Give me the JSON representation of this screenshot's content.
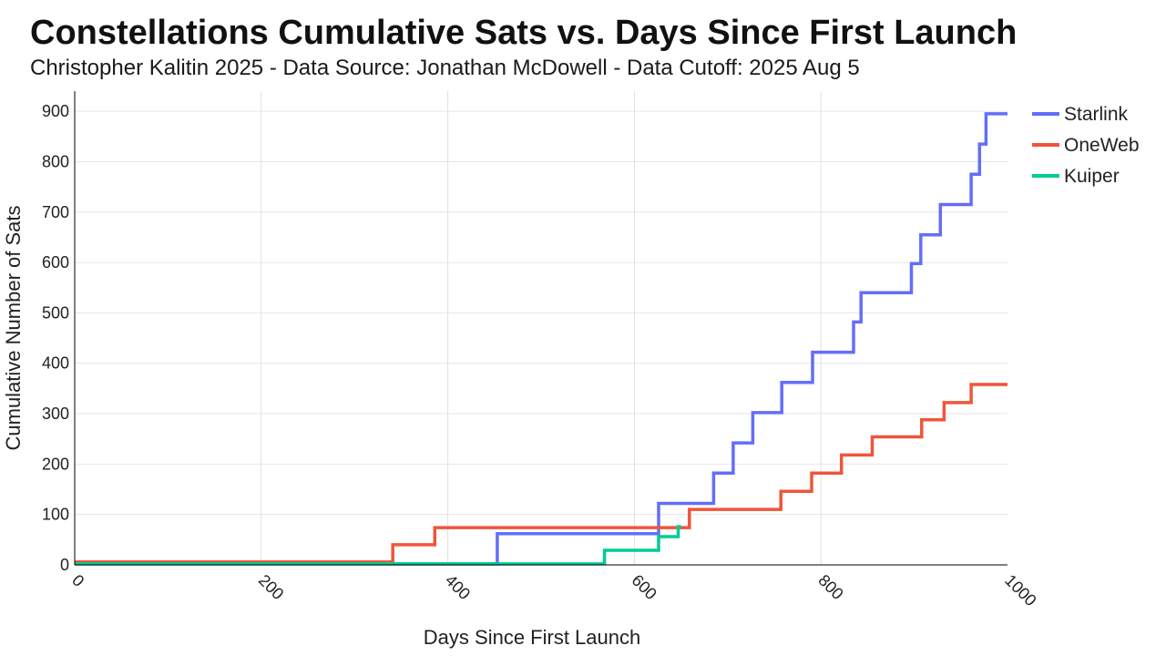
{
  "chart_data": {
    "type": "line",
    "step": true,
    "title": "Constellations Cumulative Sats vs. Days Since First Launch",
    "subtitle": "Christopher Kalitin 2025 - Data Source: Jonathan McDowell - Data Cutoff: 2025 Aug 5",
    "xlabel": "Days Since First Launch",
    "ylabel": "Cumulative Number of Sats",
    "xlim": [
      0,
      1000
    ],
    "ylim": [
      0,
      900
    ],
    "xticks": [
      0,
      200,
      400,
      600,
      800,
      1000
    ],
    "yticks": [
      0,
      100,
      200,
      300,
      400,
      500,
      600,
      700,
      800,
      900
    ],
    "grid": true,
    "legend_position": "top-right",
    "series": [
      {
        "name": "Starlink",
        "color": "#636EFA",
        "x": [
          0,
          453,
          626,
          685,
          706,
          727,
          758,
          791,
          835,
          843,
          897,
          907,
          928,
          961,
          970,
          977,
          1000
        ],
        "y": [
          2,
          62,
          122,
          182,
          242,
          302,
          362,
          422,
          482,
          540,
          598,
          655,
          715,
          775,
          835,
          895,
          895
        ]
      },
      {
        "name": "OneWeb",
        "color": "#EF553B",
        "x": [
          0,
          341,
          386,
          659,
          757,
          790,
          822,
          855,
          908,
          932,
          961,
          1000
        ],
        "y": [
          6,
          40,
          74,
          110,
          146,
          182,
          218,
          254,
          288,
          322,
          358,
          358
        ]
      },
      {
        "name": "Kuiper",
        "color": "#00CC96",
        "x": [
          0,
          568,
          626,
          647,
          650
        ],
        "y": [
          2,
          29,
          56,
          76,
          76
        ]
      }
    ]
  }
}
